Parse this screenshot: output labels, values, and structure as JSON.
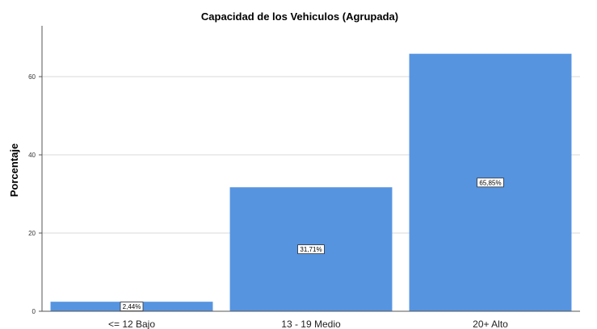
{
  "chart_data": {
    "type": "bar",
    "title": "Capacidad de los Vehiculos (Agrupada)",
    "xlabel": "",
    "ylabel": "Porcentaje",
    "categories": [
      "<= 12 Bajo",
      "13 - 19  Medio",
      "20+  Alto"
    ],
    "values": [
      2.44,
      31.71,
      65.85
    ],
    "data_labels": [
      "2,44%",
      "31,71%",
      "65,85%"
    ],
    "ylim": [
      0,
      73
    ],
    "yticks": [
      0,
      20,
      40,
      60
    ],
    "grid": true,
    "legend": "none",
    "bar_color": "#5694e0",
    "grid_color": "#d9d9d9",
    "axis_color": "#555555"
  }
}
